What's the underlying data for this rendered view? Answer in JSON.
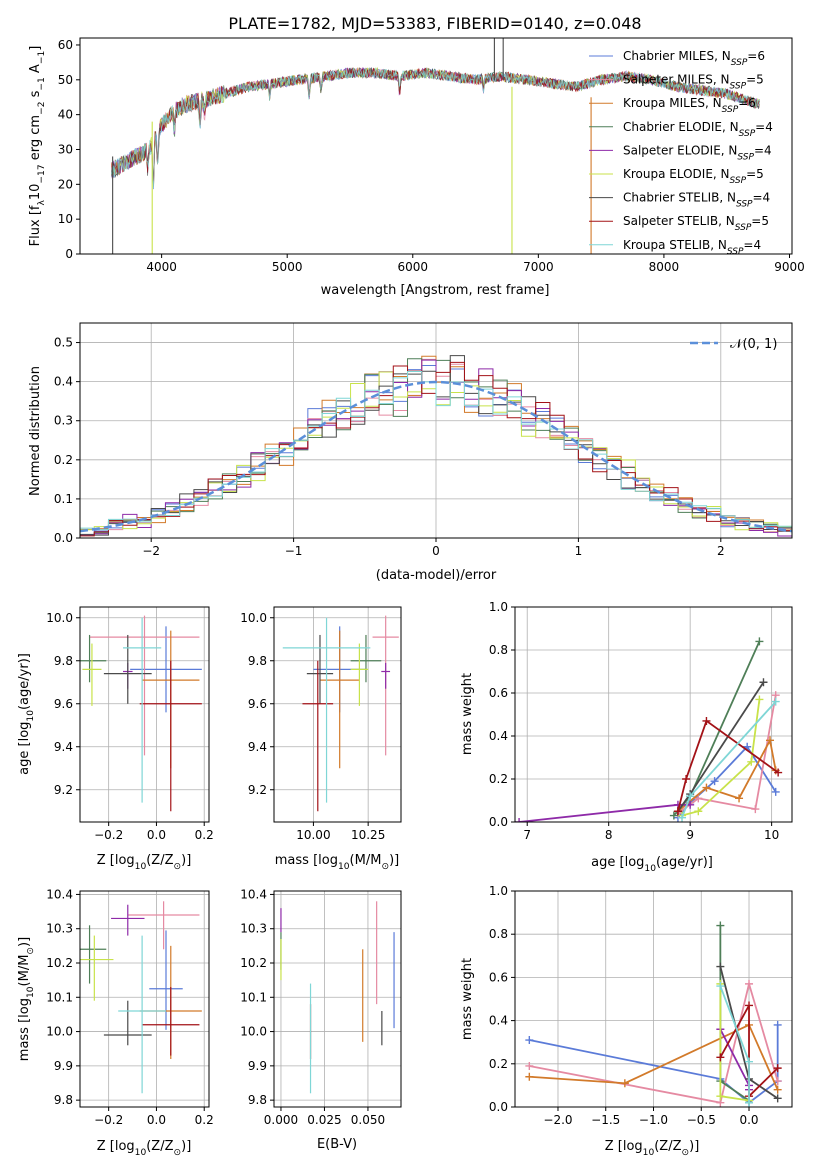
{
  "figure": {
    "title": "PLATE=1782, MJD=53383, FIBERID=0140, z=0.048",
    "colors": {
      "CM": "#5b7bd8",
      "SM": "#e58aa2",
      "KM": "#d27a2a",
      "CE": "#4f7f58",
      "SE": "#8e2aa8",
      "KE": "#c8e24a",
      "CS": "#4a4a4a",
      "SS": "#a31217",
      "KS": "#7fd6d6",
      "nfit": "#5b8fd9"
    }
  },
  "chart_data": [
    {
      "id": "spectrum",
      "type": "line",
      "xlabel": "wavelength [Angstrom, rest frame]",
      "ylabel_parts": [
        "Flux [f",
        "λ",
        "10",
        "−17",
        " erg cm",
        "−2",
        " s",
        "−1",
        " A",
        "−1",
        "]"
      ],
      "xlim": [
        3350,
        9020
      ],
      "ylim": [
        0,
        62
      ],
      "xticks": [
        4000,
        5000,
        6000,
        7000,
        8000,
        9000
      ],
      "yticks": [
        0,
        10,
        20,
        30,
        40,
        50,
        60
      ],
      "grid": false,
      "legend_position": "right",
      "legend": [
        {
          "key": "CM",
          "name": "Chabrier MILES",
          "nssp": "6"
        },
        {
          "key": "SM",
          "name": "Salpeter MILES",
          "nssp": "5"
        },
        {
          "key": "KM",
          "name": "Kroupa MILES",
          "nssp": "6"
        },
        {
          "key": "CE",
          "name": "Chabrier ELODIE",
          "nssp": "4"
        },
        {
          "key": "SE",
          "name": "Salpeter ELODIE",
          "nssp": "4"
        },
        {
          "key": "KE",
          "name": "Kroupa ELODIE",
          "nssp": "5"
        },
        {
          "key": "CS",
          "name": "Chabrier STELIB",
          "nssp": "4"
        },
        {
          "key": "SS",
          "name": "Salpeter STELIB",
          "nssp": "5"
        },
        {
          "key": "KS",
          "name": "Kroupa STELIB",
          "nssp": "4"
        }
      ],
      "continuum_x": [
        3600,
        3700,
        3800,
        3900,
        4000,
        4100,
        4200,
        4300,
        4500,
        4700,
        4900,
        5100,
        5300,
        5500,
        5700,
        5900,
        6100,
        6300,
        6500,
        6700,
        6900,
        7100,
        7300,
        7500,
        7700,
        7900,
        8100,
        8300,
        8500,
        8750
      ],
      "continuum_y": [
        24,
        26,
        28,
        30,
        37,
        41,
        43,
        44,
        46,
        48,
        49,
        50,
        51,
        52,
        52,
        51,
        52,
        51,
        50,
        51,
        50,
        49,
        48,
        50,
        51,
        50,
        48,
        47,
        46,
        43
      ],
      "dips": [
        {
          "x": 3934,
          "depth": 14
        },
        {
          "x": 3969,
          "depth": 10
        },
        {
          "x": 3889,
          "depth": 6
        },
        {
          "x": 4102,
          "depth": 6
        },
        {
          "x": 4305,
          "depth": 8
        },
        {
          "x": 4341,
          "depth": 5
        },
        {
          "x": 4861,
          "depth": 4
        },
        {
          "x": 5175,
          "depth": 6
        },
        {
          "x": 5270,
          "depth": 4
        },
        {
          "x": 5895,
          "depth": 5
        },
        {
          "x": 6563,
          "depth": 3
        }
      ],
      "spikes": [
        {
          "x": 3610,
          "y0": 0,
          "y1": 28,
          "key": "CS"
        },
        {
          "x": 3925,
          "y0": 0,
          "y1": 38,
          "key": "KE"
        },
        {
          "x": 6790,
          "y0": 0,
          "y1": 48,
          "key": "KE"
        },
        {
          "x": 6650,
          "y0": 50,
          "y1": 62,
          "key": "CS"
        },
        {
          "x": 6720,
          "y0": 50,
          "y1": 62,
          "key": "CS"
        },
        {
          "x": 7420,
          "y0": 0,
          "y1": 45,
          "key": "KM"
        }
      ]
    },
    {
      "id": "residuals",
      "type": "histogram",
      "xlabel": "(data-model)/error",
      "ylabel": "Normed distribution",
      "xlim": [
        -2.5,
        2.5
      ],
      "ylim": [
        0,
        0.55
      ],
      "xticks": [
        -2,
        -1,
        0,
        1,
        2
      ],
      "yticks": [
        0.0,
        0.1,
        0.2,
        0.3,
        0.4,
        0.5
      ],
      "grid": true,
      "legend_position": "top-right",
      "legend_label": "𝒩(0, 1)",
      "bin_width": 0.1,
      "series_keys": [
        "CM",
        "SM",
        "KM",
        "CE",
        "SE",
        "KE",
        "CS",
        "SS",
        "KS"
      ]
    },
    {
      "id": "age_vs_Z",
      "type": "errorbar",
      "xlabel_parts": [
        "Z [log",
        "10",
        "(Z/Z",
        "⊙",
        ")]"
      ],
      "ylabel_parts": [
        "age  [log",
        "10",
        "(age/yr)]"
      ],
      "xlim": [
        -0.32,
        0.22
      ],
      "ylim": [
        9.05,
        10.05
      ],
      "xticks": [
        -0.2,
        0.0,
        0.2
      ],
      "yticks": [
        9.2,
        9.4,
        9.6,
        9.8,
        10.0
      ],
      "grid": true,
      "points": [
        {
          "key": "CM",
          "x": 0.04,
          "xerr": 0.15,
          "y": 9.76,
          "yerr": [
            0.2,
            0.2
          ]
        },
        {
          "key": "SM",
          "x": -0.05,
          "xerr": 0.23,
          "y": 9.91,
          "yerr": [
            0.55,
            0.1
          ]
        },
        {
          "key": "KM",
          "x": 0.06,
          "xerr": 0.12,
          "y": 9.71,
          "yerr": [
            0.41,
            0.23
          ]
        },
        {
          "key": "CE",
          "x": -0.28,
          "xerr": 0.07,
          "y": 9.8,
          "yerr": [
            0.1,
            0.12
          ]
        },
        {
          "key": "SE",
          "x": -0.12,
          "xerr": 0.02,
          "y": 9.75,
          "yerr": [
            0.08,
            0.04
          ]
        },
        {
          "key": "KE",
          "x": -0.27,
          "xerr": 0.04,
          "y": 9.76,
          "yerr": [
            0.17,
            0.12
          ]
        },
        {
          "key": "CS",
          "x": -0.12,
          "xerr": 0.1,
          "y": 9.74,
          "yerr": [
            0.14,
            0.18
          ]
        },
        {
          "key": "SS",
          "x": 0.06,
          "xerr": 0.13,
          "y": 9.6,
          "yerr": [
            0.5,
            0.2
          ]
        },
        {
          "key": "KS",
          "x": -0.06,
          "xerr": 0.08,
          "y": 9.86,
          "yerr": [
            0.72,
            0.14
          ]
        }
      ]
    },
    {
      "id": "age_vs_mass",
      "type": "errorbar",
      "xlabel_parts": [
        "mass [log",
        "10",
        "(M/M",
        "⊙",
        ")]"
      ],
      "xlim": [
        9.82,
        10.4
      ],
      "ylim": [
        9.05,
        10.05
      ],
      "xticks": [
        10.0,
        10.25
      ],
      "yticks": [
        9.2,
        9.4,
        9.6,
        9.8,
        10.0
      ],
      "grid": true,
      "points": [
        {
          "key": "CM",
          "x": 10.12,
          "xerr": 0.12,
          "y": 9.76,
          "yerr": [
            0.2,
            0.2
          ]
        },
        {
          "key": "SM",
          "x": 10.33,
          "xerr": 0.06,
          "y": 9.91,
          "yerr": [
            0.55,
            0.1
          ]
        },
        {
          "key": "KM",
          "x": 10.12,
          "xerr": 0.09,
          "y": 9.71,
          "yerr": [
            0.41,
            0.23
          ]
        },
        {
          "key": "CE",
          "x": 10.24,
          "xerr": 0.07,
          "y": 9.8,
          "yerr": [
            0.1,
            0.12
          ]
        },
        {
          "key": "SE",
          "x": 10.33,
          "xerr": 0.02,
          "y": 9.75,
          "yerr": [
            0.08,
            0.04
          ]
        },
        {
          "key": "KE",
          "x": 10.21,
          "xerr": 0.04,
          "y": 9.76,
          "yerr": [
            0.17,
            0.12
          ]
        },
        {
          "key": "CS",
          "x": 10.03,
          "xerr": 0.06,
          "y": 9.74,
          "yerr": [
            0.14,
            0.18
          ]
        },
        {
          "key": "SS",
          "x": 10.02,
          "xerr": 0.07,
          "y": 9.6,
          "yerr": [
            0.5,
            0.2
          ]
        },
        {
          "key": "KS",
          "x": 10.06,
          "xerr": 0.2,
          "y": 9.86,
          "yerr": [
            0.72,
            0.14
          ]
        }
      ]
    },
    {
      "id": "mass_weight_vs_age",
      "type": "line",
      "xlabel_parts": [
        "age  [log",
        "10",
        "(age/yr)]"
      ],
      "ylabel": "mass weight",
      "xlim": [
        6.85,
        10.25
      ],
      "ylim": [
        0,
        1.0
      ],
      "xticks": [
        7,
        8,
        9,
        10
      ],
      "yticks": [
        0.0,
        0.2,
        0.4,
        0.6,
        0.8,
        1.0
      ],
      "grid": true,
      "series": [
        {
          "key": "CM",
          "x": [
            8.85,
            9.0,
            9.3,
            9.7,
            10.05
          ],
          "y": [
            0.02,
            0.09,
            0.19,
            0.35,
            0.14
          ]
        },
        {
          "key": "SM",
          "x": [
            8.85,
            9.1,
            9.8,
            10.05
          ],
          "y": [
            0.04,
            0.11,
            0.06,
            0.59
          ]
        },
        {
          "key": "KM",
          "x": [
            8.85,
            9.2,
            9.6,
            9.98,
            10.05
          ],
          "y": [
            0.05,
            0.16,
            0.11,
            0.38,
            0.24
          ]
        },
        {
          "key": "CE",
          "x": [
            8.8,
            9.0,
            9.85
          ],
          "y": [
            0.03,
            0.12,
            0.84
          ]
        },
        {
          "key": "SE",
          "x": [
            6.9,
            8.85,
            9.0
          ],
          "y": [
            0.0,
            0.08,
            0.08
          ]
        },
        {
          "key": "KE",
          "x": [
            8.9,
            9.1,
            9.75,
            9.85
          ],
          "y": [
            0.03,
            0.05,
            0.28,
            0.57
          ]
        },
        {
          "key": "CS",
          "x": [
            8.85,
            9.0,
            9.9
          ],
          "y": [
            0.05,
            0.13,
            0.65
          ]
        },
        {
          "key": "SS",
          "x": [
            8.85,
            8.95,
            9.2,
            10.08
          ],
          "y": [
            0.05,
            0.2,
            0.47,
            0.23
          ]
        },
        {
          "key": "KS",
          "x": [
            8.9,
            9.0,
            10.05
          ],
          "y": [
            0.02,
            0.12,
            0.56
          ]
        }
      ]
    },
    {
      "id": "mass_vs_Z",
      "type": "errorbar",
      "xlabel_parts": [
        "Z [log",
        "10",
        "(Z/Z",
        "⊙",
        ")]"
      ],
      "ylabel_parts": [
        "mass [log",
        "10",
        "(M/M",
        "⊙",
        ")]"
      ],
      "xlim": [
        -0.32,
        0.22
      ],
      "ylim": [
        9.78,
        10.41
      ],
      "xticks": [
        -0.2,
        0.0,
        0.2
      ],
      "yticks": [
        9.8,
        9.9,
        10.0,
        10.1,
        10.2,
        10.3,
        10.4
      ],
      "grid": true,
      "points": [
        {
          "key": "CM",
          "x": 0.04,
          "xerr": 0.07,
          "y": 10.125,
          "yerr": [
            0.12,
            0.17
          ]
        },
        {
          "key": "SM",
          "x": 0.03,
          "xerr": 0.15,
          "y": 10.34,
          "yerr": [
            0.1,
            0.04
          ]
        },
        {
          "key": "KM",
          "x": 0.06,
          "xerr": 0.13,
          "y": 10.06,
          "yerr": [
            0.14,
            0.19
          ]
        },
        {
          "key": "CE",
          "x": -0.28,
          "xerr": 0.07,
          "y": 10.24,
          "yerr": [
            0.1,
            0.07
          ]
        },
        {
          "key": "SE",
          "x": -0.12,
          "xerr": 0.07,
          "y": 10.33,
          "yerr": [
            0.05,
            0.04
          ]
        },
        {
          "key": "KE",
          "x": -0.26,
          "xerr": 0.08,
          "y": 10.21,
          "yerr": [
            0.12,
            0.07
          ]
        },
        {
          "key": "CS",
          "x": -0.12,
          "xerr": 0.1,
          "y": 9.99,
          "yerr": [
            0.03,
            0.1
          ]
        },
        {
          "key": "SS",
          "x": 0.06,
          "xerr": 0.12,
          "y": 10.02,
          "yerr": [
            0.09,
            0.11
          ]
        },
        {
          "key": "KS",
          "x": -0.06,
          "xerr": 0.1,
          "y": 10.06,
          "yerr": [
            0.24,
            0.22
          ]
        }
      ]
    },
    {
      "id": "mass_vs_ebv",
      "type": "errorbar",
      "xlabel": "E(B-V)",
      "xlim": [
        -0.004,
        0.069
      ],
      "ylim": [
        9.78,
        10.41
      ],
      "xticks": [
        0.0,
        0.025,
        0.05
      ],
      "xticklabels": [
        "0.000",
        "0.025",
        "0.050"
      ],
      "yticks": [
        9.8,
        9.9,
        10.0,
        10.1,
        10.2,
        10.3,
        10.4
      ],
      "grid": true,
      "points": [
        {
          "key": "CM",
          "x": 0.065,
          "y": 10.15,
          "yerr": [
            0.14,
            0.14
          ]
        },
        {
          "key": "SM",
          "x": 0.055,
          "y": 10.23,
          "yerr": [
            0.15,
            0.15
          ]
        },
        {
          "key": "KM",
          "x": 0.047,
          "y": 10.11,
          "yerr": [
            0.14,
            0.13
          ]
        },
        {
          "key": "CE",
          "x": 0.0,
          "y": 10.24,
          "yerr": [
            0.06,
            0.05
          ]
        },
        {
          "key": "SE",
          "x": 0.0,
          "y": 10.33,
          "yerr": [
            0.04,
            0.03
          ]
        },
        {
          "key": "KE",
          "x": 0.0,
          "y": 10.21,
          "yerr": [
            0.06,
            0.06
          ]
        },
        {
          "key": "CS",
          "x": 0.058,
          "y": 10.01,
          "yerr": [
            0.05,
            0.05
          ]
        },
        {
          "key": "SS",
          "x": 0.017,
          "y": 10.0,
          "yerr": [
            0.08,
            0.08
          ]
        },
        {
          "key": "KS",
          "x": 0.017,
          "y": 9.99,
          "yerr": [
            0.17,
            0.15
          ]
        }
      ]
    },
    {
      "id": "mass_weight_vs_Z",
      "type": "line",
      "xlabel_parts": [
        "Z [log",
        "10",
        "(Z/Z",
        "⊙",
        ")]"
      ],
      "ylabel": "mass weight",
      "xlim": [
        -2.45,
        0.45
      ],
      "ylim": [
        0,
        1.0
      ],
      "xticks": [
        -2.0,
        -1.5,
        -1.0,
        -0.5,
        0.0
      ],
      "yticks": [
        0.0,
        0.2,
        0.4,
        0.6,
        0.8,
        1.0
      ],
      "grid": true,
      "series": [
        {
          "key": "CM",
          "x": [
            -2.3,
            -0.3,
            0.0,
            0.3,
            0.3
          ],
          "y": [
            0.31,
            0.13,
            0.02,
            0.12,
            0.38
          ]
        },
        {
          "key": "SM",
          "x": [
            -2.3,
            -0.3,
            0.0,
            0.3
          ],
          "y": [
            0.19,
            0.02,
            0.57,
            0.12
          ]
        },
        {
          "key": "KM",
          "x": [
            -2.3,
            -1.3,
            0.0,
            0.3
          ],
          "y": [
            0.14,
            0.11,
            0.38,
            0.08
          ]
        },
        {
          "key": "CE",
          "x": [
            -0.3,
            -0.3,
            0.0
          ],
          "y": [
            0.84,
            0.12,
            0.03
          ]
        },
        {
          "key": "SE",
          "x": [
            -0.3,
            0.0,
            0.0
          ],
          "y": [
            0.36,
            0.1,
            0.08
          ]
        },
        {
          "key": "KE",
          "x": [
            -0.3,
            -0.3,
            0.0
          ],
          "y": [
            0.57,
            0.05,
            0.03
          ]
        },
        {
          "key": "CS",
          "x": [
            -0.3,
            0.0,
            0.3
          ],
          "y": [
            0.65,
            0.13,
            0.04
          ]
        },
        {
          "key": "SS",
          "x": [
            -0.3,
            0.0,
            0.0,
            0.3
          ],
          "y": [
            0.23,
            0.47,
            0.05,
            0.18
          ]
        },
        {
          "key": "KS",
          "x": [
            -0.3,
            0.0,
            0.0
          ],
          "y": [
            0.56,
            0.21,
            0.02
          ]
        }
      ]
    }
  ]
}
